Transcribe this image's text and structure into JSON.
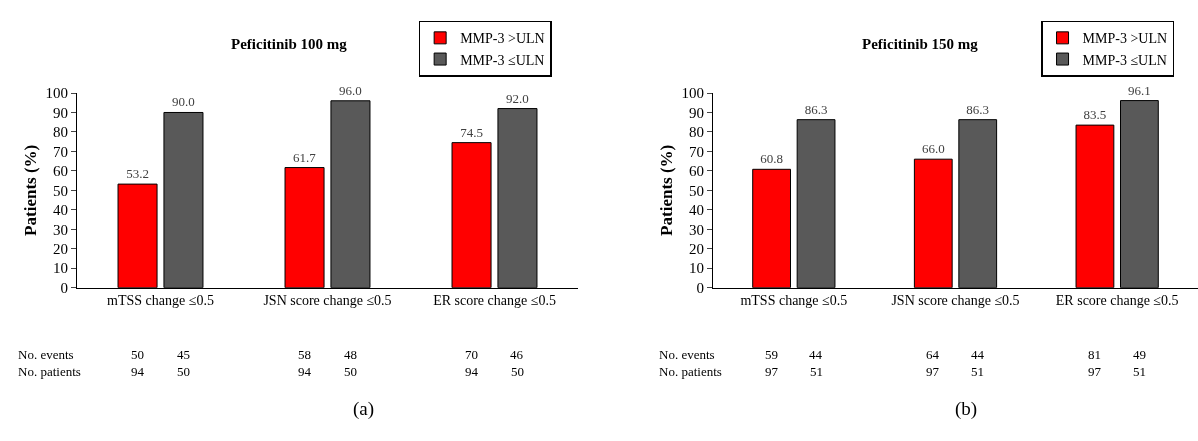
{
  "chart_data": [
    {
      "type": "bar",
      "title": "Peficitinib 100 mg",
      "ylabel": "Patients (%)",
      "categories": [
        "mTSS change ≤0.5",
        "JSN score change ≤0.5",
        "ER score change ≤0.5"
      ],
      "series": [
        {
          "name": "MMP-3 >ULN",
          "color": "#ff0000",
          "values": [
            53.2,
            61.7,
            74.5
          ],
          "value_labels": [
            "53.2",
            "61.7",
            "74.5"
          ]
        },
        {
          "name": "MMP-3 ≤ULN",
          "color": "#595959",
          "values": [
            90.0,
            96.0,
            92.0
          ],
          "value_labels": [
            "90.0",
            "96.0",
            "92.0"
          ]
        }
      ],
      "ylim": [
        0,
        100
      ],
      "yticks": [
        0,
        10,
        20,
        30,
        40,
        50,
        60,
        70,
        80,
        90,
        100
      ],
      "legend": "top right",
      "annotations": [
        "(a)",
        "No. events",
        "50",
        "45",
        "58",
        "48",
        "70",
        "46",
        "No. patients",
        "94",
        "50",
        "94",
        "50",
        "94",
        "50"
      ]
    },
    {
      "type": "bar",
      "title": "Peficitinib 150 mg",
      "ylabel": "Patients (%)",
      "categories": [
        "mTSS change ≤0.5",
        "JSN score change ≤0.5",
        "ER score change ≤0.5"
      ],
      "series": [
        {
          "name": "MMP-3 >ULN",
          "color": "#ff0000",
          "values": [
            60.8,
            66.0,
            83.5
          ],
          "value_labels": [
            "60.8",
            "66.0",
            "83.5"
          ]
        },
        {
          "name": "MMP-3 ≤ULN",
          "color": "#595959",
          "values": [
            86.3,
            86.3,
            96.1
          ],
          "value_labels": [
            "86.3",
            "86.3",
            "96.1"
          ]
        }
      ],
      "ylim": [
        0,
        100
      ],
      "yticks": [
        0,
        10,
        20,
        30,
        40,
        50,
        60,
        70,
        80,
        90,
        100
      ],
      "legend": "top right",
      "annotations": [
        "(b)",
        "No. events",
        "59",
        "44",
        "64",
        "44",
        "81",
        "49",
        "No. patients",
        "97",
        "51",
        "97",
        "51",
        "97",
        "51"
      ]
    }
  ]
}
